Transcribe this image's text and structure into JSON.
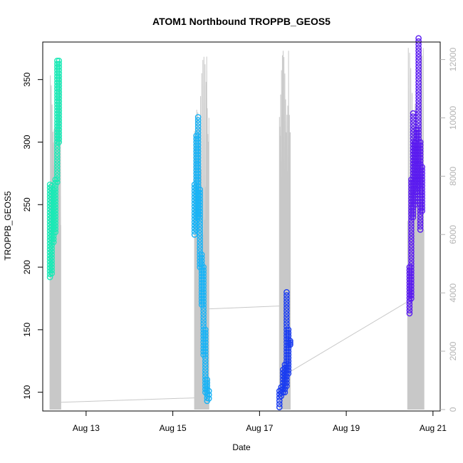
{
  "chart_data": {
    "type": "scatter",
    "title": "ATOM1 Northbound TROPPB_GEOS5",
    "xlabel": "Date",
    "ylabel": "TROPPB_GEOS5",
    "x_ticks": [
      "Aug 13",
      "Aug 15",
      "Aug 17",
      "Aug 19",
      "Aug 21"
    ],
    "y_ticks": [
      "100",
      "150",
      "200",
      "250",
      "300",
      "350"
    ],
    "y2_ticks": [
      "0",
      "2000",
      "4000",
      "6000",
      "8000",
      "10000",
      "12000"
    ],
    "xlim": [
      "Aug 12 00:00",
      "Aug 21 04:00"
    ],
    "ylim": [
      85,
      380
    ],
    "y2lim": [
      -50,
      12600
    ],
    "grid": false,
    "legend": "none",
    "colors": {
      "axis": "#000000",
      "altitude_line": "#c8c8c8",
      "right_axis": "#b4b4b4"
    },
    "series": [
      {
        "color": "#1de9b6",
        "ranges": [
          {
            "x": "Aug 12 04:00",
            "y": [
              192,
              266
            ]
          },
          {
            "x": "Aug 12 05:00",
            "y": [
              195,
              265
            ]
          },
          {
            "x": "Aug 12 06:00",
            "y": [
              220,
              262
            ]
          },
          {
            "x": "Aug 12 07:00",
            "y": [
              228,
              270
            ]
          },
          {
            "x": "Aug 12 08:00",
            "y": [
              268,
              365
            ]
          },
          {
            "x": "Aug 12 09:00",
            "y": [
              300,
              365
            ]
          }
        ]
      },
      {
        "color": "#1ab3f5",
        "ranges": [
          {
            "x": "Aug 15 12:00",
            "y": [
              226,
              266
            ]
          },
          {
            "x": "Aug 15 13:00",
            "y": [
              230,
              305
            ]
          },
          {
            "x": "Aug 15 14:00",
            "y": [
              240,
              320
            ]
          },
          {
            "x": "Aug 15 15:00",
            "y": [
              200,
              262
            ]
          },
          {
            "x": "Aug 15 16:00",
            "y": [
              170,
              210
            ]
          },
          {
            "x": "Aug 15 17:00",
            "y": [
              130,
              200
            ]
          },
          {
            "x": "Aug 15 18:00",
            "y": [
              100,
              150
            ]
          },
          {
            "x": "Aug 15 19:00",
            "y": [
              93,
              110
            ]
          },
          {
            "x": "Aug 15 20:00",
            "y": [
              95,
              101
            ]
          }
        ]
      },
      {
        "color": "#1a3cf0",
        "ranges": [
          {
            "x": "Aug 17 11:00",
            "y": [
              88,
              101
            ]
          },
          {
            "x": "Aug 17 12:00",
            "y": [
              97,
              104
            ]
          },
          {
            "x": "Aug 17 13:00",
            "y": [
              100,
              118
            ]
          },
          {
            "x": "Aug 17 14:00",
            "y": [
              100,
              122
            ]
          },
          {
            "x": "Aug 17 15:00",
            "y": [
              105,
              180
            ]
          },
          {
            "x": "Aug 17 16:00",
            "y": [
              115,
              150
            ]
          },
          {
            "x": "Aug 17 17:00",
            "y": [
              138,
              141
            ]
          }
        ]
      },
      {
        "color": "#5a1af0",
        "ranges": [
          {
            "x": "Aug 20 11:00",
            "y": [
              163,
              200
            ]
          },
          {
            "x": "Aug 20 12:00",
            "y": [
              175,
              270
            ]
          },
          {
            "x": "Aug 20 13:00",
            "y": [
              240,
              323
            ]
          },
          {
            "x": "Aug 20 14:00",
            "y": [
              250,
              300
            ]
          },
          {
            "x": "Aug 20 15:00",
            "y": [
              260,
              310
            ]
          },
          {
            "x": "Aug 20 16:00",
            "y": [
              265,
              383
            ]
          },
          {
            "x": "Aug 20 17:00",
            "y": [
              230,
              300
            ]
          },
          {
            "x": "Aug 20 18:00",
            "y": [
              245,
              280
            ]
          }
        ]
      }
    ],
    "altitude": {
      "axis": "right",
      "bursts": [
        {
          "x_start": "Aug 12 04:00",
          "x_end": "Aug 12 10:00",
          "max": 11500
        },
        {
          "x_start": "Aug 15 12:00",
          "x_end": "Aug 15 20:00",
          "max": 12100
        },
        {
          "x_start": "Aug 17 11:00",
          "x_end": "Aug 17 17:00",
          "max": 12300
        },
        {
          "x_start": "Aug 20 10:00",
          "x_end": "Aug 20 19:00",
          "max": 12400
        }
      ],
      "connectors": [
        {
          "x": [
            "Aug 12 10:00",
            "Aug 15 12:00"
          ],
          "y": [
            250,
            400
          ]
        },
        {
          "x": [
            "Aug 15 20:00",
            "Aug 17 11:00"
          ],
          "y": [
            3450,
            3550
          ]
        },
        {
          "x": [
            "Aug 17 17:00",
            "Aug 20 10:00"
          ],
          "y": [
            1300,
            3700
          ]
        }
      ]
    }
  }
}
